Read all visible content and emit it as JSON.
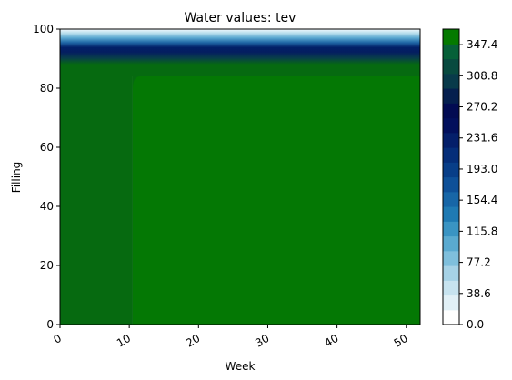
{
  "chart_data": {
    "type": "heatmap",
    "title": "Water values: tev",
    "xlabel": "Week",
    "ylabel": "Filling",
    "xlim": [
      0,
      52
    ],
    "ylim": [
      0,
      100
    ],
    "xticks": [
      "0",
      "10",
      "20",
      "30",
      "40",
      "50"
    ],
    "yticks": [
      "0",
      "20",
      "40",
      "60",
      "80",
      "100"
    ],
    "colorbar": {
      "ticks": [
        "0.0",
        "38.6",
        "77.2",
        "115.8",
        "154.4",
        "193.0",
        "231.6",
        "270.2",
        "308.8",
        "347.4"
      ],
      "range": [
        0,
        366.7
      ],
      "colormap": "white-blue-navy-green",
      "colors": [
        "#ffffff",
        "#e1f0f6",
        "#c7e3ef",
        "#a6d2e6",
        "#7fbfdc",
        "#5aaad0",
        "#3a94c3",
        "#1f7ab3",
        "#1766a7",
        "#0e5098",
        "#083e88",
        "#052e79",
        "#041f6a",
        "#02105c",
        "#020b52",
        "#051f4e",
        "#083a4a",
        "#084a3f",
        "#066038",
        "#047a00"
      ]
    },
    "regions": [
      {
        "week_range": [
          0,
          10.5
        ],
        "filling_range": [
          0,
          86
        ],
        "value": 352,
        "color": "#066a10"
      },
      {
        "week_range": [
          10.5,
          52
        ],
        "filling_range": [
          0,
          84
        ],
        "value": 366,
        "color": "#047804"
      },
      {
        "week_range": [
          0,
          52
        ],
        "filling_range": [
          84,
          88
        ],
        "value": 340,
        "color": "#066a10"
      },
      {
        "week_range": [
          0,
          52
        ],
        "filling_range": [
          88,
          100
        ],
        "value_profile": [
          340,
          320,
          300,
          280,
          270,
          260,
          230,
          190,
          150,
          110,
          70,
          30,
          5
        ]
      }
    ]
  }
}
